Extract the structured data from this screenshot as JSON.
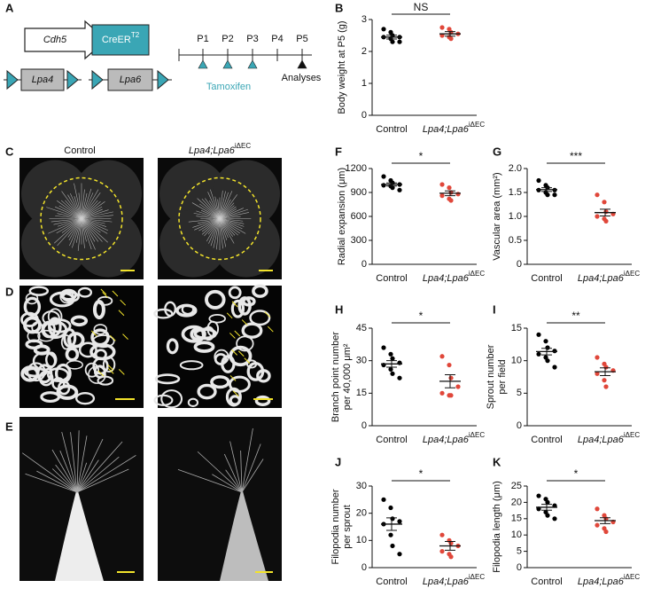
{
  "panel_letters": [
    "A",
    "B",
    "C",
    "D",
    "E",
    "F",
    "G",
    "H",
    "I",
    "J",
    "K"
  ],
  "diagram": {
    "driver": "Cdh5",
    "cre": "CreER",
    "cre_sup": "T2",
    "allele_1": "Lpa4",
    "allele_2": "Lpa6",
    "timeline": [
      "P1",
      "P2",
      "P3",
      "P4",
      "P5"
    ],
    "treatment": "Tamoxifen",
    "endpoint": "Analyses"
  },
  "images": {
    "control": "Control",
    "mutant": "Lpa4;Lpa6",
    "mutant_sup": "iΔEC"
  },
  "chart_data": [
    {
      "type": "dotplot",
      "ylabel": [
        "Body weight at P5 (g)"
      ],
      "ylim": [
        0,
        3
      ],
      "yticks": [
        0,
        1,
        2,
        3
      ],
      "significance": "NS",
      "series": [
        {
          "name": "Control",
          "color": "#000000",
          "values": [
            2.7,
            2.6,
            2.5,
            2.45,
            2.45,
            2.4,
            2.3,
            2.3
          ],
          "mean": 2.45,
          "sem": 0.06
        },
        {
          "name": "Lpa4;Lpa6",
          "name_sup": "iΔEC",
          "color": "#e0473a",
          "values": [
            2.75,
            2.7,
            2.6,
            2.55,
            2.5,
            2.45,
            2.4
          ],
          "mean": 2.55,
          "sem": 0.07
        }
      ]
    },
    {
      "type": "dotplot",
      "ylabel": [
        "Radial expansion (μm)"
      ],
      "ylim": [
        0,
        1200
      ],
      "yticks": [
        0,
        300,
        600,
        900,
        1200
      ],
      "significance": "*",
      "series": [
        {
          "name": "Control",
          "color": "#000000",
          "values": [
            1100,
            1050,
            1020,
            1000,
            990,
            980,
            960,
            930
          ],
          "mean": 1000,
          "sem": 20
        },
        {
          "name": "Lpa4;Lpa6",
          "name_sup": "iΔEC",
          "color": "#e0473a",
          "values": [
            1000,
            960,
            900,
            880,
            860,
            820,
            800
          ],
          "mean": 890,
          "sem": 30
        }
      ]
    },
    {
      "type": "dotplot",
      "ylabel": [
        "Vascular area (mm²)"
      ],
      "ylim": [
        0,
        2
      ],
      "yticks": [
        0,
        0.5,
        {
          "value": 1,
          "label": "1.0"
        },
        1.5,
        {
          "value": 2,
          "label": "2.0"
        }
      ],
      "significance": "***",
      "series": [
        {
          "name": "Control",
          "color": "#000000",
          "values": [
            1.75,
            1.65,
            1.6,
            1.55,
            1.55,
            1.5,
            1.45,
            1.45
          ],
          "mean": 1.56,
          "sem": 0.04
        },
        {
          "name": "Lpa4;Lpa6",
          "name_sup": "iΔEC",
          "color": "#e0473a",
          "values": [
            1.45,
            1.3,
            1.1,
            1.05,
            1,
            0.95,
            0.9
          ],
          "mean": 1.08,
          "sem": 0.07
        }
      ]
    },
    {
      "type": "dotplot",
      "ylabel": [
        "Branch point number",
        "per 40,000 μm²"
      ],
      "ylim": [
        0,
        45
      ],
      "yticks": [
        0,
        15,
        30,
        45
      ],
      "significance": "*",
      "series": [
        {
          "name": "Control",
          "color": "#000000",
          "values": [
            36,
            33,
            31,
            29,
            28,
            26,
            24,
            22
          ],
          "mean": 28.5,
          "sem": 1.5
        },
        {
          "name": "Lpa4;Lpa6",
          "name_sup": "iΔEC",
          "color": "#e0473a",
          "values": [
            32,
            28,
            22,
            18,
            15,
            14,
            14
          ],
          "mean": 20.5,
          "sem": 3
        }
      ]
    },
    {
      "type": "dotplot",
      "ylabel": [
        "Sprout number",
        "per field"
      ],
      "ylim": [
        0,
        15
      ],
      "yticks": [
        0,
        5,
        10,
        15
      ],
      "significance": "**",
      "series": [
        {
          "name": "Control",
          "color": "#000000",
          "values": [
            14,
            13,
            12,
            11.5,
            11,
            10.5,
            10,
            9
          ],
          "mean": 11.4,
          "sem": 0.5
        },
        {
          "name": "Lpa4;Lpa6",
          "name_sup": "iΔEC",
          "color": "#e0473a",
          "values": [
            10.5,
            9.5,
            9,
            8.5,
            8,
            7,
            6
          ],
          "mean": 8.3,
          "sem": 0.6
        }
      ]
    },
    {
      "type": "dotplot",
      "ylabel": [
        "Filopodia number",
        "per sprout"
      ],
      "ylim": [
        0,
        30
      ],
      "yticks": [
        0,
        10,
        20,
        30
      ],
      "significance": "*",
      "series": [
        {
          "name": "Control",
          "color": "#000000",
          "values": [
            25,
            22,
            18,
            17,
            16,
            12,
            8,
            5
          ],
          "mean": 16,
          "sem": 2.3
        },
        {
          "name": "Lpa4;Lpa6",
          "name_sup": "iΔEC",
          "color": "#e0473a",
          "values": [
            12,
            10,
            9,
            8,
            6,
            5,
            4
          ],
          "mean": 8,
          "sem": 1.6
        }
      ]
    },
    {
      "type": "dotplot",
      "ylabel": [
        "Filopodia length (μm)"
      ],
      "ylim": [
        0,
        25
      ],
      "yticks": [
        0,
        5,
        10,
        15,
        20,
        25
      ],
      "significance": "*",
      "series": [
        {
          "name": "Control",
          "color": "#000000",
          "values": [
            22,
            21,
            20,
            19,
            18,
            17,
            16,
            15
          ],
          "mean": 18.5,
          "sem": 0.9
        },
        {
          "name": "Lpa4;Lpa6",
          "name_sup": "iΔEC",
          "color": "#e0473a",
          "values": [
            18,
            16,
            15,
            14,
            13,
            12,
            11
          ],
          "mean": 14.4,
          "sem": 0.9
        }
      ]
    }
  ]
}
